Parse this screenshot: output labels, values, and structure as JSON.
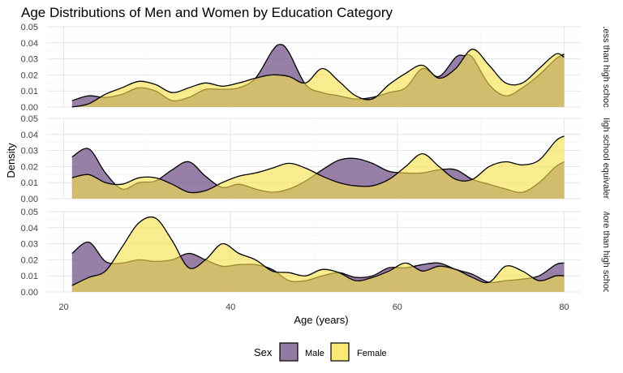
{
  "chart_data": {
    "type": "area",
    "title": "Age Distributions of Men and Women by Education Category",
    "xlabel": "Age (years)",
    "ylabel": "Density",
    "xlim": [
      18,
      82
    ],
    "ylim": [
      0,
      0.05
    ],
    "x_ticks": [
      "20",
      "40",
      "60",
      "80"
    ],
    "x_tick_values": [
      20,
      40,
      60,
      80
    ],
    "y_ticks": [
      "0.00",
      "0.01",
      "0.02",
      "0.03",
      "0.04",
      "0.05"
    ],
    "y_tick_values": [
      0,
      0.01,
      0.02,
      0.03,
      0.04,
      0.05
    ],
    "legend": {
      "title": "Sex",
      "position": "bottom"
    },
    "colors": {
      "Male": "#6f4e86",
      "Female": "#f7e24a",
      "overlap": "#c8ae52"
    },
    "panels": [
      {
        "strip_label": "Less than high school",
        "series": [
          {
            "name": "Male",
            "x": [
              21,
              23,
              25,
              27,
              29,
              31,
              33,
              35,
              37,
              39,
              41,
              43,
              45,
              46,
              47,
              49,
              51,
              53,
              55,
              57,
              59,
              61,
              63,
              65,
              67,
              68,
              69,
              71,
              73,
              75,
              77,
              79,
              80
            ],
            "y": [
              0.004,
              0.007,
              0.006,
              0.008,
              0.012,
              0.01,
              0.004,
              0.006,
              0.011,
              0.011,
              0.012,
              0.018,
              0.035,
              0.039,
              0.034,
              0.014,
              0.009,
              0.007,
              0.005,
              0.006,
              0.009,
              0.012,
              0.024,
              0.019,
              0.031,
              0.032,
              0.031,
              0.014,
              0.007,
              0.012,
              0.02,
              0.03,
              0.033
            ]
          },
          {
            "name": "Female",
            "x": [
              21,
              23,
              25,
              27,
              29,
              31,
              33,
              35,
              37,
              39,
              41,
              43,
              45,
              47,
              49,
              51,
              53,
              55,
              57,
              59,
              61,
              63,
              65,
              67,
              69,
              71,
              73,
              75,
              77,
              79,
              80
            ],
            "y": [
              0.0,
              0.002,
              0.008,
              0.012,
              0.016,
              0.014,
              0.009,
              0.012,
              0.015,
              0.013,
              0.015,
              0.018,
              0.02,
              0.019,
              0.015,
              0.024,
              0.016,
              0.007,
              0.005,
              0.014,
              0.021,
              0.026,
              0.018,
              0.024,
              0.036,
              0.026,
              0.015,
              0.015,
              0.024,
              0.033,
              0.031
            ]
          }
        ]
      },
      {
        "strip_label": "High school equivalent",
        "series": [
          {
            "name": "Male",
            "x": [
              21,
              23,
              25,
              27,
              29,
              31,
              33,
              35,
              37,
              39,
              41,
              43,
              45,
              47,
              49,
              51,
              53,
              55,
              57,
              59,
              61,
              63,
              65,
              67,
              69,
              71,
              73,
              75,
              77,
              79,
              80
            ],
            "y": [
              0.026,
              0.031,
              0.016,
              0.006,
              0.01,
              0.011,
              0.018,
              0.023,
              0.014,
              0.007,
              0.009,
              0.006,
              0.004,
              0.006,
              0.011,
              0.018,
              0.024,
              0.025,
              0.022,
              0.017,
              0.016,
              0.016,
              0.018,
              0.018,
              0.012,
              0.009,
              0.006,
              0.004,
              0.01,
              0.02,
              0.023
            ]
          },
          {
            "name": "Female",
            "x": [
              21,
              23,
              25,
              27,
              29,
              31,
              33,
              35,
              37,
              39,
              41,
              43,
              45,
              47,
              49,
              51,
              53,
              55,
              57,
              59,
              61,
              63,
              65,
              67,
              69,
              71,
              73,
              75,
              77,
              79,
              80
            ],
            "y": [
              0.013,
              0.015,
              0.01,
              0.009,
              0.013,
              0.013,
              0.009,
              0.004,
              0.005,
              0.01,
              0.014,
              0.016,
              0.019,
              0.022,
              0.019,
              0.014,
              0.01,
              0.008,
              0.008,
              0.012,
              0.02,
              0.028,
              0.02,
              0.012,
              0.012,
              0.02,
              0.023,
              0.021,
              0.024,
              0.036,
              0.039
            ]
          }
        ]
      },
      {
        "strip_label": "More than high school",
        "series": [
          {
            "name": "Male",
            "x": [
              21,
              23,
              25,
              27,
              29,
              31,
              33,
              35,
              37,
              39,
              41,
              43,
              45,
              47,
              49,
              51,
              53,
              55,
              57,
              59,
              61,
              63,
              65,
              67,
              69,
              71,
              73,
              75,
              77,
              79,
              80
            ],
            "y": [
              0.024,
              0.031,
              0.019,
              0.018,
              0.02,
              0.019,
              0.02,
              0.024,
              0.02,
              0.016,
              0.017,
              0.017,
              0.014,
              0.007,
              0.007,
              0.01,
              0.012,
              0.009,
              0.01,
              0.015,
              0.015,
              0.017,
              0.018,
              0.014,
              0.011,
              0.006,
              0.007,
              0.008,
              0.01,
              0.017,
              0.018
            ]
          },
          {
            "name": "Female",
            "x": [
              21,
              23,
              25,
              27,
              29,
              31,
              33,
              35,
              37,
              39,
              41,
              43,
              45,
              47,
              49,
              51,
              53,
              55,
              57,
              59,
              61,
              63,
              65,
              67,
              69,
              71,
              73,
              75,
              77,
              79,
              80
            ],
            "y": [
              0.004,
              0.009,
              0.013,
              0.028,
              0.043,
              0.046,
              0.032,
              0.015,
              0.02,
              0.03,
              0.024,
              0.02,
              0.013,
              0.012,
              0.01,
              0.014,
              0.012,
              0.007,
              0.009,
              0.013,
              0.018,
              0.013,
              0.016,
              0.014,
              0.009,
              0.006,
              0.016,
              0.013,
              0.007,
              0.01,
              0.01
            ]
          }
        ]
      }
    ]
  }
}
